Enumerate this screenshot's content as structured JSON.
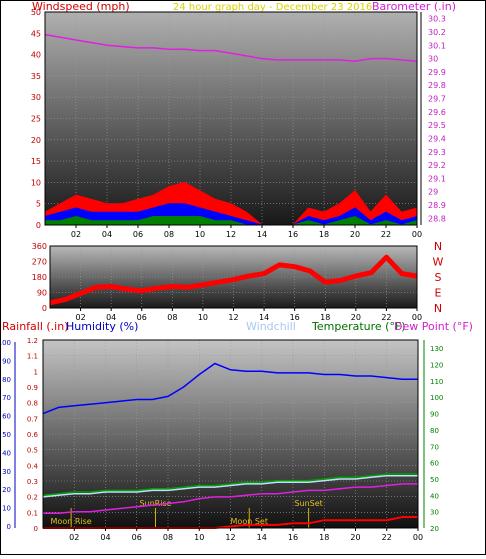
{
  "chart_data": [
    {
      "type": "line",
      "panel": "wind-barometer",
      "title": "24 hour graph day - December 23 2016",
      "ylabel_left": "Windspeed (mph)",
      "ylabel_right": "Barometer (.in)",
      "ylim_left": [
        0,
        50
      ],
      "ylim_right": [
        28.75,
        30.35
      ],
      "yticks_left": [
        "0",
        "5",
        "10",
        "15",
        "20",
        "25",
        "30",
        "35",
        "40",
        "45",
        "50"
      ],
      "yticks_right": [
        "28.8",
        "28.9",
        "29",
        "29.1",
        "29.2",
        "29.3",
        "29.4",
        "29.5",
        "29.6",
        "29.7",
        "29.8",
        "29.9",
        "30",
        "30.1",
        "30.2",
        "30.3"
      ],
      "xticks": [
        "02",
        "04",
        "06",
        "08",
        "10",
        "12",
        "14",
        "16",
        "18",
        "20",
        "22",
        "00"
      ],
      "x": [
        0,
        1,
        2,
        3,
        4,
        5,
        6,
        7,
        8,
        9,
        10,
        11,
        12,
        13,
        14,
        15,
        16,
        17,
        18,
        19,
        20,
        21,
        22,
        23,
        24
      ],
      "series": [
        {
          "name": "Barometer (.in)",
          "color": "#e020e0",
          "axis": "right",
          "values": [
            30.18,
            30.16,
            30.14,
            30.12,
            30.1,
            30.09,
            30.08,
            30.08,
            30.07,
            30.07,
            30.06,
            30.06,
            30.04,
            30.02,
            30.0,
            29.99,
            29.99,
            29.99,
            29.99,
            29.99,
            29.98,
            30.0,
            30.0,
            29.99,
            29.98
          ]
        },
        {
          "name": "Wind gust",
          "color": "#ff0000",
          "axis": "left",
          "values": [
            3,
            5,
            7,
            6,
            5,
            5,
            6,
            7,
            9,
            10,
            8,
            6,
            5,
            3,
            0,
            0,
            0,
            4,
            3,
            5,
            8,
            3,
            7,
            3,
            4
          ]
        },
        {
          "name": "Wind speed",
          "color": "#0000ff",
          "axis": "left",
          "values": [
            2,
            3,
            4,
            3,
            3,
            3,
            3,
            4,
            5,
            5,
            4,
            3,
            2,
            1,
            0,
            0,
            0,
            2,
            1,
            2,
            4,
            1,
            3,
            1,
            2
          ]
        },
        {
          "name": "Wind average",
          "color": "#008000",
          "axis": "left",
          "values": [
            1,
            1,
            2,
            1,
            1,
            1,
            1,
            2,
            2,
            2,
            2,
            1,
            1,
            0,
            0,
            0,
            0,
            1,
            0,
            1,
            2,
            0,
            1,
            0,
            1
          ]
        }
      ]
    },
    {
      "type": "scatter",
      "panel": "wind-direction",
      "ylim": [
        0,
        360
      ],
      "yticks": [
        "0",
        "90",
        "180",
        "270",
        "360"
      ],
      "compass_labels": [
        "N",
        "W",
        "S",
        "E",
        "N"
      ],
      "xticks": [
        "02",
        "04",
        "06",
        "08",
        "10",
        "12",
        "14",
        "16",
        "18",
        "20",
        "22",
        "00"
      ],
      "series": [
        {
          "name": "Wind direction",
          "color": "#ff0000",
          "x": [
            0,
            1,
            2,
            3,
            4,
            5,
            6,
            7,
            8,
            9,
            10,
            11,
            12,
            13,
            14,
            15,
            16,
            17,
            18,
            19,
            20,
            21,
            22,
            23,
            24
          ],
          "values": [
            30,
            50,
            85,
            120,
            125,
            110,
            100,
            115,
            125,
            120,
            135,
            150,
            165,
            185,
            200,
            250,
            240,
            215,
            150,
            160,
            185,
            205,
            295,
            200,
            185
          ]
        }
      ]
    },
    {
      "type": "line",
      "panel": "rain-humidity-temperature",
      "labels": {
        "rainfall": "Rainfall (.in)",
        "humidity": "Humidity (%)",
        "windchill": "Windchill",
        "temperature": "Temperature (°F)",
        "dewpoint": "Dew Point (°F)"
      },
      "yticks_humidity": [
        "0",
        "10",
        "20",
        "30",
        "40",
        "50",
        "60",
        "70",
        "80",
        "90",
        "100"
      ],
      "yticks_rain": [
        "0",
        "0.1",
        "0.2",
        "0.3",
        "0.4",
        "0.5",
        "0.6",
        "0.7",
        "0.8",
        "0.9",
        "1",
        "1.1",
        "1.2"
      ],
      "yticks_temp": [
        "20",
        "30",
        "40",
        "50",
        "60",
        "70",
        "80",
        "90",
        "100",
        "110",
        "120",
        "130"
      ],
      "ylim_rain": [
        0,
        1.2
      ],
      "ylim_temp": [
        20,
        135
      ],
      "xticks": [
        "02",
        "04",
        "06",
        "08",
        "10",
        "12",
        "14",
        "16",
        "18",
        "20",
        "22",
        "00"
      ],
      "annotations": [
        {
          "text": "Moon Rise",
          "x": 1.8
        },
        {
          "text": "SunRise",
          "x": 7.2
        },
        {
          "text": "Moon Set",
          "x": 13.2
        },
        {
          "text": "SunSet",
          "x": 17.0
        }
      ],
      "x": [
        0,
        1,
        2,
        3,
        4,
        5,
        6,
        7,
        8,
        9,
        10,
        11,
        12,
        13,
        14,
        15,
        16,
        17,
        18,
        19,
        20,
        21,
        22,
        23,
        24
      ],
      "series": [
        {
          "name": "Humidity (%)",
          "color": "#0000ff",
          "axis": "rain",
          "values": [
            0.73,
            0.77,
            0.78,
            0.79,
            0.8,
            0.81,
            0.82,
            0.82,
            0.84,
            0.9,
            0.98,
            1.05,
            1.01,
            1.0,
            1.0,
            0.99,
            0.99,
            0.99,
            0.98,
            0.98,
            0.97,
            0.97,
            0.96,
            0.95,
            0.95
          ]
        },
        {
          "name": "Temperature (°F)",
          "color": "#00a000",
          "axis": "temp",
          "values": [
            40,
            41,
            42,
            42,
            43,
            43,
            43,
            44,
            44,
            45,
            46,
            46,
            47,
            48,
            48,
            49,
            49,
            49,
            50,
            51,
            51,
            52,
            53,
            53,
            53
          ]
        },
        {
          "name": "Windchill",
          "color": "#c0e0ff",
          "axis": "temp",
          "values": [
            39,
            40,
            41,
            41,
            42,
            42,
            42,
            43,
            43,
            44,
            45,
            45,
            46,
            47,
            47,
            48,
            48,
            48,
            49,
            50,
            50,
            51,
            52,
            52,
            52
          ]
        },
        {
          "name": "Dew Point (°F)",
          "color": "#e020e0",
          "axis": "temp",
          "values": [
            29,
            29,
            30,
            30,
            31,
            32,
            33,
            34,
            35,
            36,
            38,
            39,
            39,
            40,
            41,
            41,
            42,
            43,
            43,
            44,
            45,
            45,
            46,
            47,
            47
          ]
        },
        {
          "name": "Rainfall (.in)",
          "color": "#ff0000",
          "axis": "rain",
          "values": [
            0,
            0,
            0,
            0,
            0,
            0,
            0,
            0,
            0,
            0,
            0,
            0,
            0.01,
            0.02,
            0.02,
            0.02,
            0.03,
            0.03,
            0.05,
            0.05,
            0.05,
            0.05,
            0.05,
            0.07,
            0.07
          ]
        }
      ]
    }
  ]
}
